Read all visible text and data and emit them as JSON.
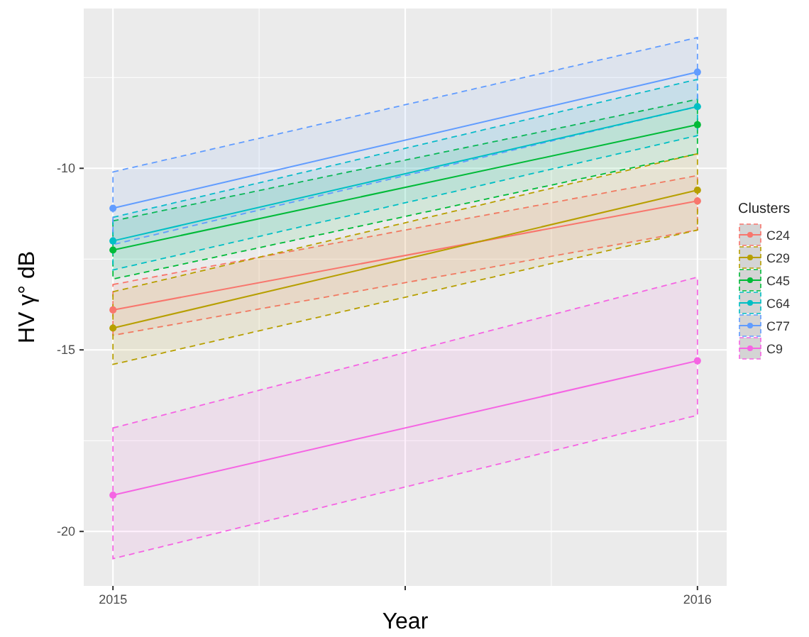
{
  "chart_data": {
    "type": "line",
    "xlabel": "Year",
    "ylabel": "HV γ° dB",
    "legend_title": "Clusters",
    "x": [
      2015,
      2016
    ],
    "xlim": [
      2014.95,
      2016.05
    ],
    "xticks": [
      2015,
      {
        "value": 2015.5,
        "label": null
      },
      2016
    ],
    "ylim": [
      -21.5,
      -5.6
    ],
    "yticks": [
      -20,
      -15,
      -10
    ],
    "grid": true,
    "legend": "right",
    "marker": "circle",
    "line_style": "solid",
    "series": [
      {
        "name": "C24",
        "color": "#f8766d",
        "values": [
          -13.9,
          -10.9
        ],
        "lower": [
          -14.6,
          -11.7
        ],
        "upper": [
          -13.2,
          -10.2
        ]
      },
      {
        "name": "C29",
        "color": "#b79f00",
        "values": [
          -14.4,
          -10.6
        ],
        "lower": [
          -15.4,
          -11.7
        ],
        "upper": [
          -13.4,
          -9.6
        ]
      },
      {
        "name": "C45",
        "color": "#00ba38",
        "values": [
          -12.25,
          -8.8
        ],
        "lower": [
          -13.05,
          -9.6
        ],
        "upper": [
          -11.45,
          -8.1
        ]
      },
      {
        "name": "C64",
        "color": "#00bfc4",
        "values": [
          -12.0,
          -8.3
        ],
        "lower": [
          -12.8,
          -9.1
        ],
        "upper": [
          -11.35,
          -7.55
        ]
      },
      {
        "name": "C77",
        "color": "#619cff",
        "values": [
          -11.1,
          -7.35
        ],
        "lower": [
          -12.1,
          -8.3
        ],
        "upper": [
          -10.1,
          -6.4
        ]
      },
      {
        "name": "C9",
        "color": "#f564e3",
        "values": [
          -19.0,
          -15.3
        ],
        "lower": [
          -20.75,
          -16.8
        ],
        "upper": [
          -17.15,
          -13.0
        ]
      }
    ]
  }
}
